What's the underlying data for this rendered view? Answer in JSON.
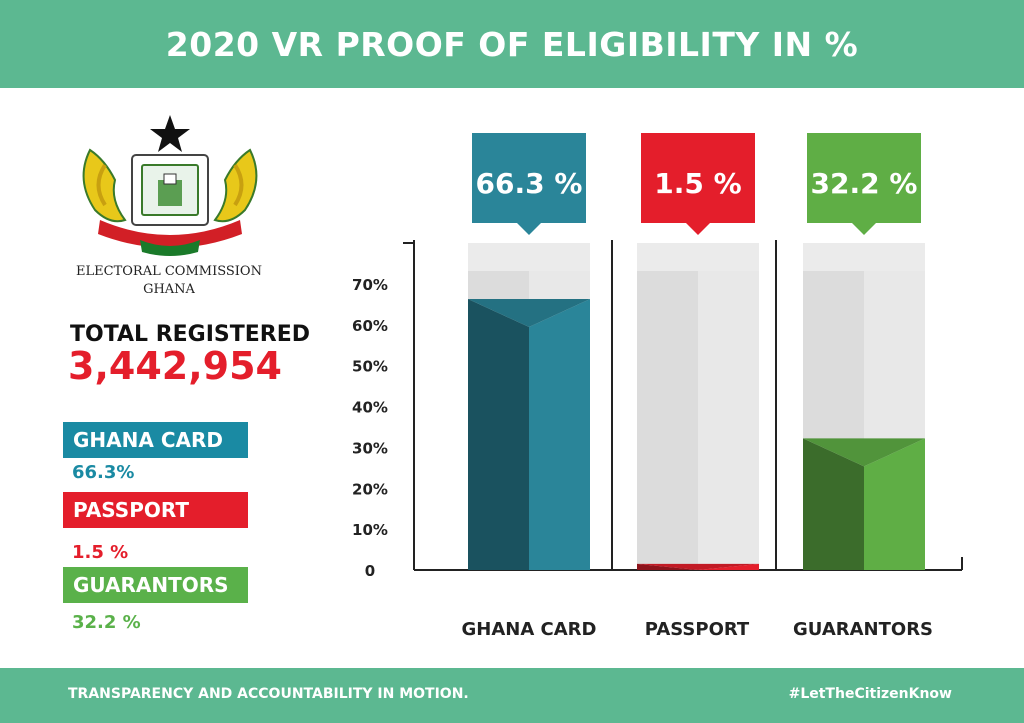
{
  "header": {
    "title": "2020 VR PROOF OF ELIGIBILITY IN %"
  },
  "organization": {
    "line1": "ELECTORAL COMMISSION",
    "line2": "GHANA"
  },
  "totals": {
    "label": "TOTAL REGISTERED",
    "value": "3,442,954"
  },
  "legend": [
    {
      "label": "GHANA CARD",
      "value": "66.3%",
      "color": "#1a8aa3"
    },
    {
      "label": "PASSPORT",
      "value": "1.5 %",
      "color": "#e41e2b"
    },
    {
      "label": "GUARANTORS",
      "value": "32.2 %",
      "color": "#5ab14a"
    }
  ],
  "footer": {
    "tagline": "TRANSPARENCY AND ACCOUNTABILITY IN MOTION.",
    "hashtag": "#LetTheCitizenKnow"
  },
  "chart_data": {
    "type": "bar",
    "title": "2020 VR PROOF OF ELIGIBILITY IN %",
    "categories": [
      "GHANA CARD",
      "PASSPORT",
      "GUARANTORS"
    ],
    "values": [
      66.3,
      1.5,
      32.2
    ],
    "data_labels": [
      "66.3 %",
      "1.5 %",
      "32.2 %"
    ],
    "colors": [
      "#2a8599",
      "#e41e2b",
      "#5fae45"
    ],
    "ytick_labels": [
      "0",
      "10%",
      "20%",
      "30%",
      "40%",
      "50%",
      "60%",
      "70%"
    ],
    "yticks": [
      0,
      10,
      20,
      30,
      40,
      50,
      60,
      70
    ],
    "ylim": [
      0,
      80
    ],
    "grid": false
  }
}
